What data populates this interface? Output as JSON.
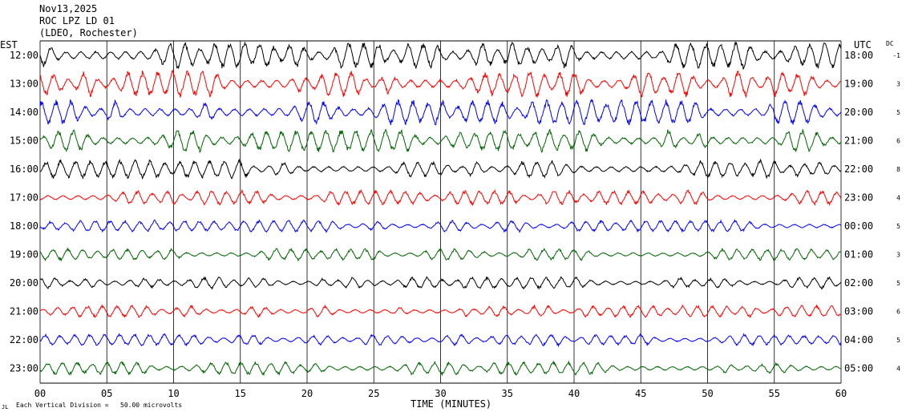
{
  "header": {
    "date": "Nov13,2025",
    "station": "ROC LPZ LD 01",
    "network": "(LDEO, Rochester)"
  },
  "left_axis_label": "EST",
  "right_axis_label": "UTC",
  "dc_label": "DC",
  "footer": {
    "division_note": "Each Vertical Division =   50.00 microvolts",
    "corner_mark": "JL"
  },
  "colors": {
    "trace_cycle": [
      "#000000",
      "#ff0000",
      "#0000ff",
      "#006400"
    ],
    "gridline": "#000000",
    "text": "#000000"
  },
  "chart_data": {
    "type": "line",
    "title": "ROC LPZ LD 01",
    "xlabel": "TIME (MINUTES)",
    "ylabel": "",
    "xlim": [
      0,
      60
    ],
    "x_ticks": [
      "00",
      "05",
      "10",
      "15",
      "20",
      "25",
      "30",
      "35",
      "40",
      "45",
      "50",
      "55",
      "60"
    ],
    "grid": true,
    "rows": [
      {
        "est": "12:00",
        "utc": "18:00",
        "dc": "-1",
        "color": "black",
        "relative_amplitude": 1.0
      },
      {
        "est": "13:00",
        "utc": "19:00",
        "dc": "3",
        "color": "red",
        "relative_amplitude": 1.0
      },
      {
        "est": "14:00",
        "utc": "20:00",
        "dc": "5",
        "color": "blue",
        "relative_amplitude": 0.95
      },
      {
        "est": "15:00",
        "utc": "21:00",
        "dc": "6",
        "color": "green",
        "relative_amplitude": 0.85
      },
      {
        "est": "16:00",
        "utc": "22:00",
        "dc": "8",
        "color": "black",
        "relative_amplitude": 0.7
      },
      {
        "est": "17:00",
        "utc": "23:00",
        "dc": "4",
        "color": "red",
        "relative_amplitude": 0.55
      },
      {
        "est": "18:00",
        "utc": "00:00",
        "dc": "5",
        "color": "blue",
        "relative_amplitude": 0.45
      },
      {
        "est": "19:00",
        "utc": "01:00",
        "dc": "3",
        "color": "green",
        "relative_amplitude": 0.45
      },
      {
        "est": "20:00",
        "utc": "02:00",
        "dc": "5",
        "color": "black",
        "relative_amplitude": 0.45
      },
      {
        "est": "21:00",
        "utc": "03:00",
        "dc": "6",
        "color": "red",
        "relative_amplitude": 0.45
      },
      {
        "est": "22:00",
        "utc": "04:00",
        "dc": "5",
        "color": "blue",
        "relative_amplitude": 0.45
      },
      {
        "est": "23:00",
        "utc": "05:00",
        "dc": "4",
        "color": "green",
        "relative_amplitude": 0.5
      }
    ]
  }
}
